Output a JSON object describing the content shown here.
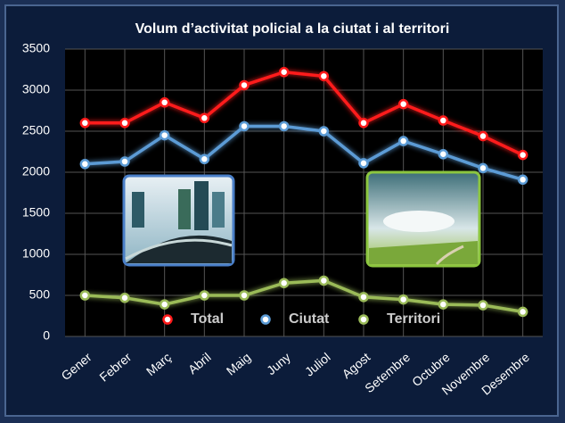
{
  "chart_data": {
    "type": "line",
    "title": "Volum d’activitat policial a la ciutat i al territori",
    "categories": [
      "Gener",
      "Febrer",
      "Març",
      "Abril",
      "Maig",
      "Juny",
      "Juliol",
      "Agost",
      "Setembre",
      "Octubre",
      "Novembre",
      "Desembre"
    ],
    "series": [
      {
        "name": "Total",
        "color": "#ff1a1a",
        "values": [
          2600,
          2600,
          2850,
          2660,
          3060,
          3220,
          3170,
          2600,
          2830,
          2630,
          2440,
          2210
        ]
      },
      {
        "name": "Ciutat",
        "color": "#5b9bd5",
        "values": [
          2100,
          2130,
          2450,
          2160,
          2560,
          2560,
          2500,
          2110,
          2380,
          2220,
          2050,
          1910
        ]
      },
      {
        "name": "Territori",
        "color": "#9bbb59",
        "values": [
          500,
          470,
          390,
          500,
          500,
          650,
          680,
          480,
          450,
          390,
          380,
          300
        ]
      }
    ],
    "ylim": [
      0,
      3500
    ],
    "yticks": [
      0,
      500,
      1000,
      1500,
      2000,
      2500,
      3000,
      3500
    ],
    "grid": true,
    "legend": "bottom"
  }
}
